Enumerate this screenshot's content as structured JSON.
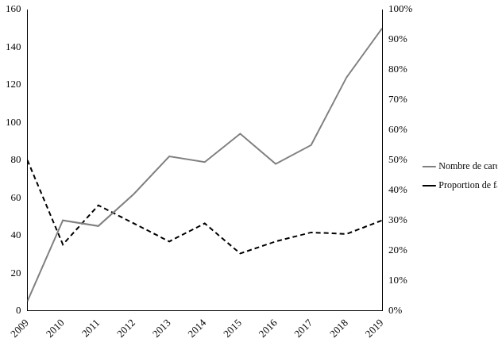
{
  "chart_data": {
    "type": "line",
    "categories": [
      "2009",
      "2010",
      "2011",
      "2012",
      "2013",
      "2014",
      "2015",
      "2016",
      "2017",
      "2018",
      "2019"
    ],
    "series": [
      {
        "name": "Nombre de cardioversions électriques",
        "color": "#808080",
        "line_style": "solid",
        "marker": "none",
        "values": [
          5,
          48,
          45,
          62,
          82,
          79,
          94,
          78,
          88,
          124,
          150
        ]
      },
      {
        "name": "Proportion de fa",
        "color": "#000000",
        "line_style": "dashed",
        "marker": "none",
        "axis": "y2",
        "values": [
          50,
          22,
          35,
          29,
          23,
          29,
          19,
          23,
          26,
          25.5,
          30
        ]
      }
    ],
    "ylim": [
      0,
      160
    ],
    "yticks": [
      0,
      20,
      40,
      60,
      80,
      100,
      120,
      140,
      160
    ],
    "y2lim": [
      0,
      100
    ],
    "y2ticks": [
      {
        "value": 0,
        "label": "0%"
      },
      {
        "value": 10,
        "label": "10%"
      },
      {
        "value": 20,
        "label": "20%"
      },
      {
        "value": 30,
        "label": "30%"
      },
      {
        "value": 40,
        "label": "40%"
      },
      {
        "value": 50,
        "label": "50%"
      },
      {
        "value": 60,
        "label": "60%"
      },
      {
        "value": 70,
        "label": "70%"
      },
      {
        "value": 80,
        "label": "80%"
      },
      {
        "value": 90,
        "label": "90%"
      },
      {
        "value": 100,
        "label": "100%"
      }
    ],
    "grid": false,
    "legend": "right"
  }
}
